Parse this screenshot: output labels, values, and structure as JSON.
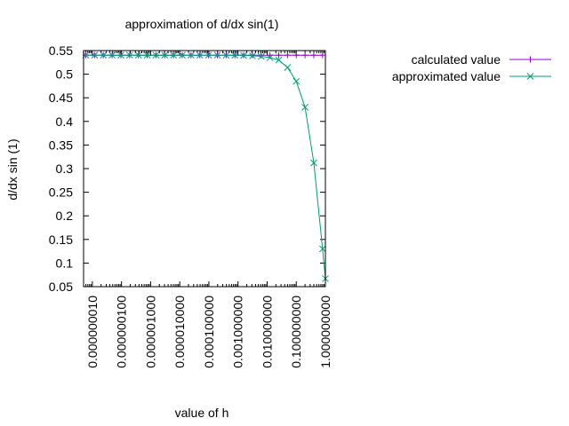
{
  "chart_data": {
    "type": "line",
    "title": "approximation of d/dx sin(1)",
    "xlabel": "value of h",
    "ylabel": "d/dx sin (1)",
    "x_scale": "log",
    "xlim": [
      5e-09,
      1.0
    ],
    "ylim": [
      0.05,
      0.55
    ],
    "y_ticks": [
      "0.05",
      "0.1",
      "0.15",
      "0.2",
      "0.25",
      "0.3",
      "0.35",
      "0.4",
      "0.45",
      "0.5",
      "0.55"
    ],
    "x_ticks": [
      "0.000000010",
      "0.000000100",
      "0.000001000",
      "0.000010000",
      "0.000100000",
      "0.001000000",
      "0.010000000",
      "0.100000000",
      "1.000000000"
    ],
    "x_tick_values": [
      1e-08,
      1e-07,
      1e-06,
      1e-05,
      0.0001,
      0.001,
      0.01,
      0.1,
      1
    ],
    "grid": false,
    "legend_position": "top-right",
    "series": [
      {
        "name": "calculated value",
        "color": "#9400d3",
        "marker": "plus",
        "x": [
          5.9605e-09,
          1.19209e-08,
          2.38419e-08,
          4.76837e-08,
          9.53674e-08,
          1.90735e-07,
          3.8147e-07,
          7.6294e-07,
          1.52588e-06,
          3.05176e-06,
          6.10352e-06,
          1.2207e-05,
          2.44141e-05,
          4.88281e-05,
          9.76563e-05,
          0.000195313,
          0.000390625,
          0.00078125,
          0.0015625,
          0.003125,
          0.00625,
          0.0125,
          0.025,
          0.05,
          0.1,
          0.2,
          0.4,
          0.8
        ],
        "y": [
          0.5403,
          0.5403,
          0.5403,
          0.5403,
          0.5403,
          0.5403,
          0.5403,
          0.5403,
          0.5403,
          0.5403,
          0.5403,
          0.5403,
          0.5403,
          0.5403,
          0.5403,
          0.5403,
          0.5403,
          0.5403,
          0.5403,
          0.5403,
          0.5403,
          0.5403,
          0.5403,
          0.5403,
          0.5403,
          0.5403,
          0.5403,
          0.5403
        ]
      },
      {
        "name": "approximated value",
        "color": "#009e73",
        "marker": "cross",
        "x": [
          5.9605e-09,
          1.19209e-08,
          2.38419e-08,
          4.76837e-08,
          9.53674e-08,
          1.90735e-07,
          3.8147e-07,
          7.6294e-07,
          1.52588e-06,
          3.05176e-06,
          6.10352e-06,
          1.2207e-05,
          2.44141e-05,
          4.88281e-05,
          9.76563e-05,
          0.000195313,
          0.000390625,
          0.00078125,
          0.0015625,
          0.003125,
          0.00625,
          0.0125,
          0.025,
          0.05,
          0.1,
          0.2,
          0.4,
          0.8,
          1.0
        ],
        "y": [
          0.5403,
          0.5403,
          0.5403,
          0.5403,
          0.5403,
          0.5403,
          0.5403,
          0.5403,
          0.5403,
          0.5403,
          0.5403,
          0.5403,
          0.5403,
          0.5403,
          0.5403,
          0.5403,
          0.5402,
          0.5401,
          0.5399,
          0.539,
          0.5377,
          0.5351,
          0.5301,
          0.5141,
          0.485,
          0.43,
          0.312,
          0.13,
          0.067
        ]
      }
    ]
  }
}
